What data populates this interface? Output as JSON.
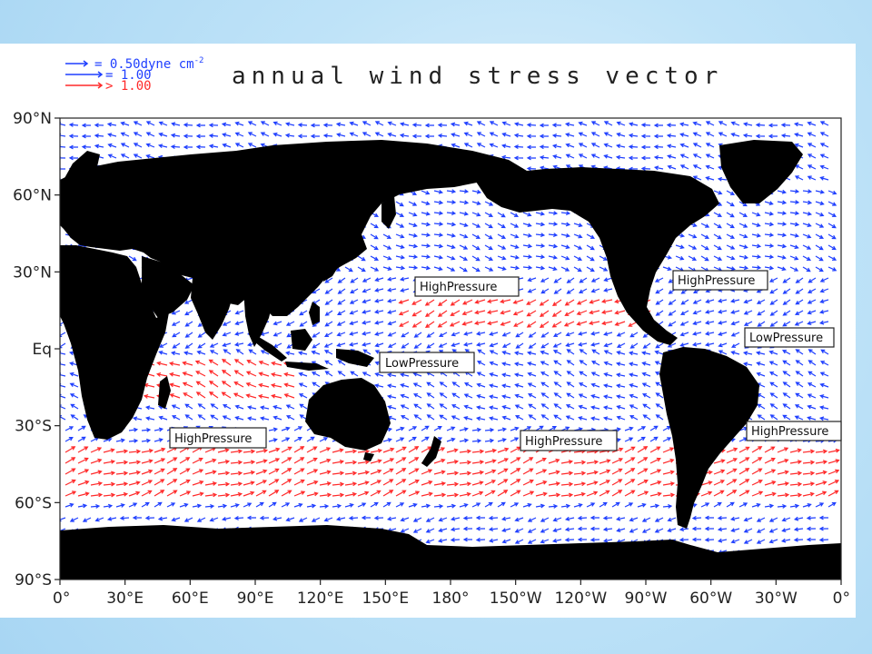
{
  "title": "annual wind stress vector",
  "legend": {
    "unit_text": "dyne cm",
    "unit_exponent": "-2",
    "entries": [
      {
        "symbol": "= ",
        "value": "0.50",
        "color": "#1f3fff"
      },
      {
        "symbol": "= ",
        "value": "1.00",
        "color": "#1f3fff"
      },
      {
        "symbol": "> ",
        "value": "1.00",
        "color": "#ff2a2a"
      }
    ]
  },
  "axes": {
    "y_ticks": [
      "90°N",
      "60°N",
      "30°N",
      "Eq",
      "30°S",
      "60°S",
      "90°S"
    ],
    "x_ticks": [
      "0°",
      "30°E",
      "60°E",
      "90°E",
      "120°E",
      "150°E",
      "180°",
      "150°W",
      "120°W",
      "90°W",
      "60°W",
      "30°W",
      "0°"
    ]
  },
  "labels": {
    "high_n_pacific": "HighPressure",
    "high_n_atlantic": "HighPressure",
    "low_e_pacific": "LowPressure",
    "low_w_pacific": "LowPressure",
    "high_s_indian": "HighPressure",
    "high_s_pacific": "HighPressure",
    "high_s_atlantic": "HighPressure"
  },
  "colors": {
    "land": "#000000",
    "weak_wind": "#1f3fff",
    "strong_wind": "#ff2a2a",
    "ocean": "#ffffff"
  }
}
